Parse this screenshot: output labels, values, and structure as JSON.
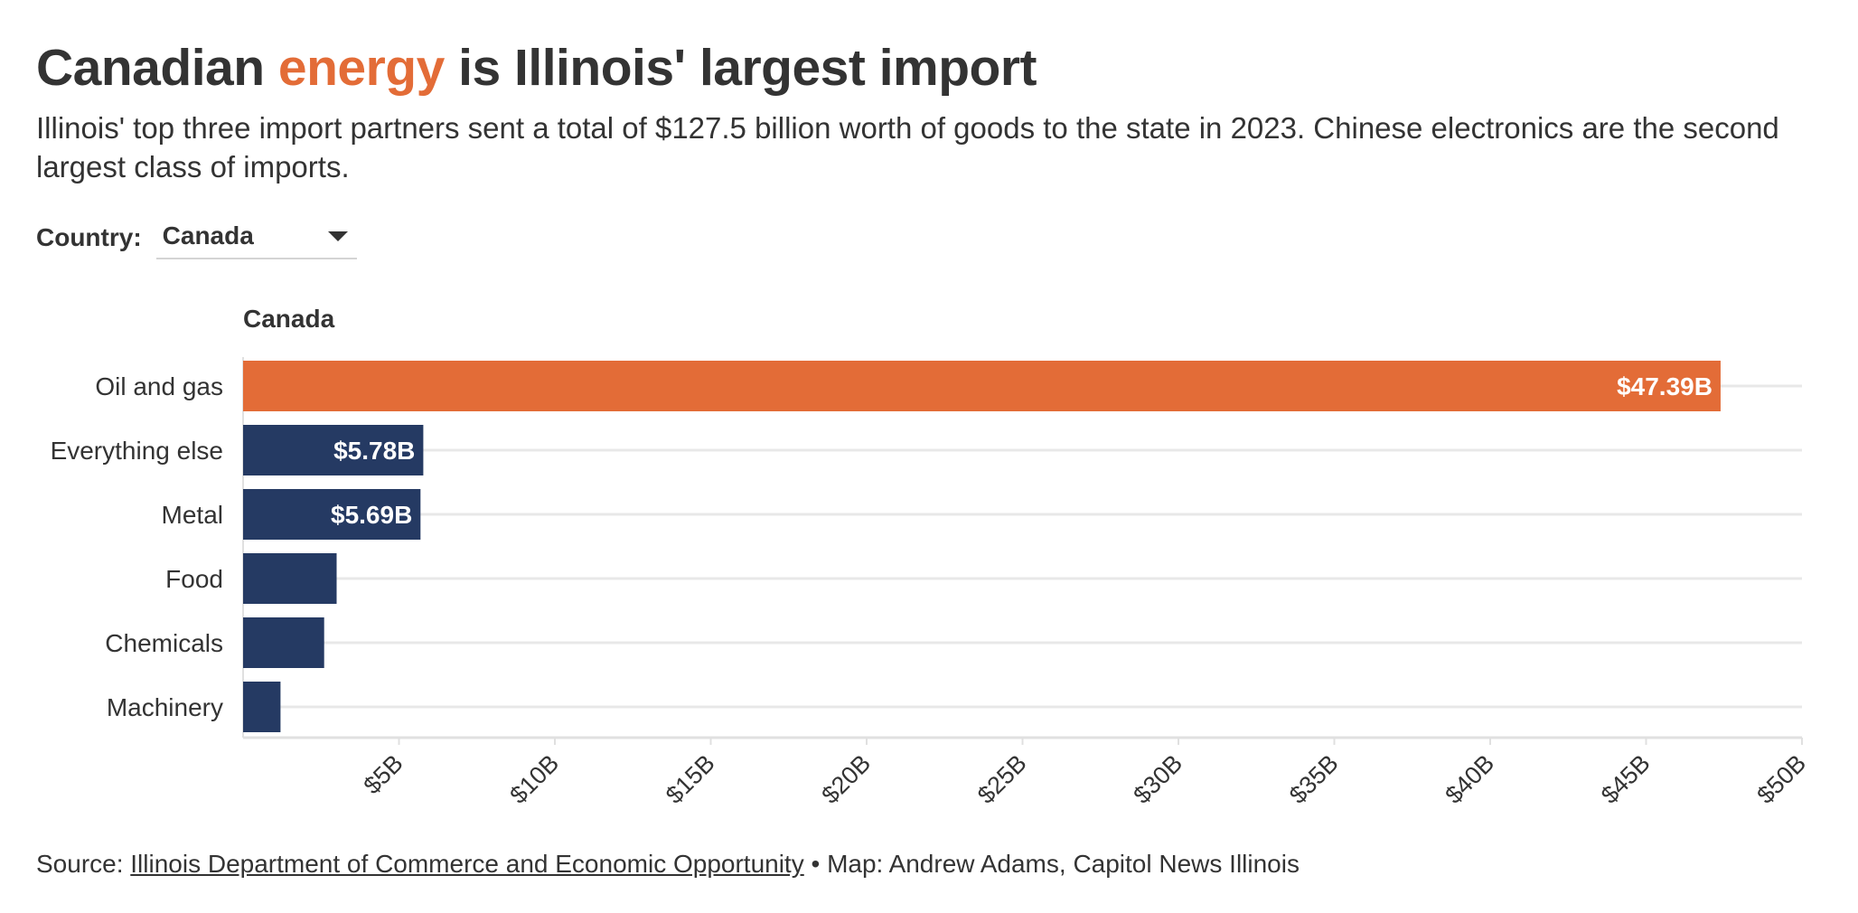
{
  "header": {
    "title_part1": "Canadian ",
    "title_highlight": "energy",
    "title_part2": " is Illinois' largest import",
    "subtitle": "Illinois' top three import partners sent a total of $127.5 billion worth of goods to the state in 2023. Chinese electronics are the second largest class of imports."
  },
  "control": {
    "label": "Country:",
    "selected": "Canada"
  },
  "chart_data": {
    "type": "bar",
    "orientation": "horizontal",
    "title": "Canada",
    "categories": [
      "Oil and gas",
      "Everything else",
      "Metal",
      "Food",
      "Chemicals",
      "Machinery"
    ],
    "values": [
      47.39,
      5.78,
      5.69,
      3.0,
      2.6,
      1.2
    ],
    "value_labels": [
      "$47.39B",
      "$5.78B",
      "$5.69B",
      "",
      "",
      ""
    ],
    "xlim": [
      0,
      50
    ],
    "x_ticks": [
      5,
      10,
      15,
      20,
      25,
      30,
      35,
      40,
      45,
      50
    ],
    "x_tick_labels": [
      "$5B",
      "$10B",
      "$15B",
      "$20B",
      "$25B",
      "$30B",
      "$35B",
      "$40B",
      "$45B",
      "$50B"
    ],
    "grid": true,
    "colors": {
      "highlight": "#e36c37",
      "default": "#253a63",
      "grid": "#e8e8e8",
      "axis": "#e0e0e0",
      "text": "#333333"
    },
    "highlight_index": 0
  },
  "footer": {
    "source_prefix": "Source: ",
    "source_link": "Illinois Department of Commerce and Economic Opportunity",
    "credit": " • Map: Andrew Adams, Capitol News Illinois"
  }
}
